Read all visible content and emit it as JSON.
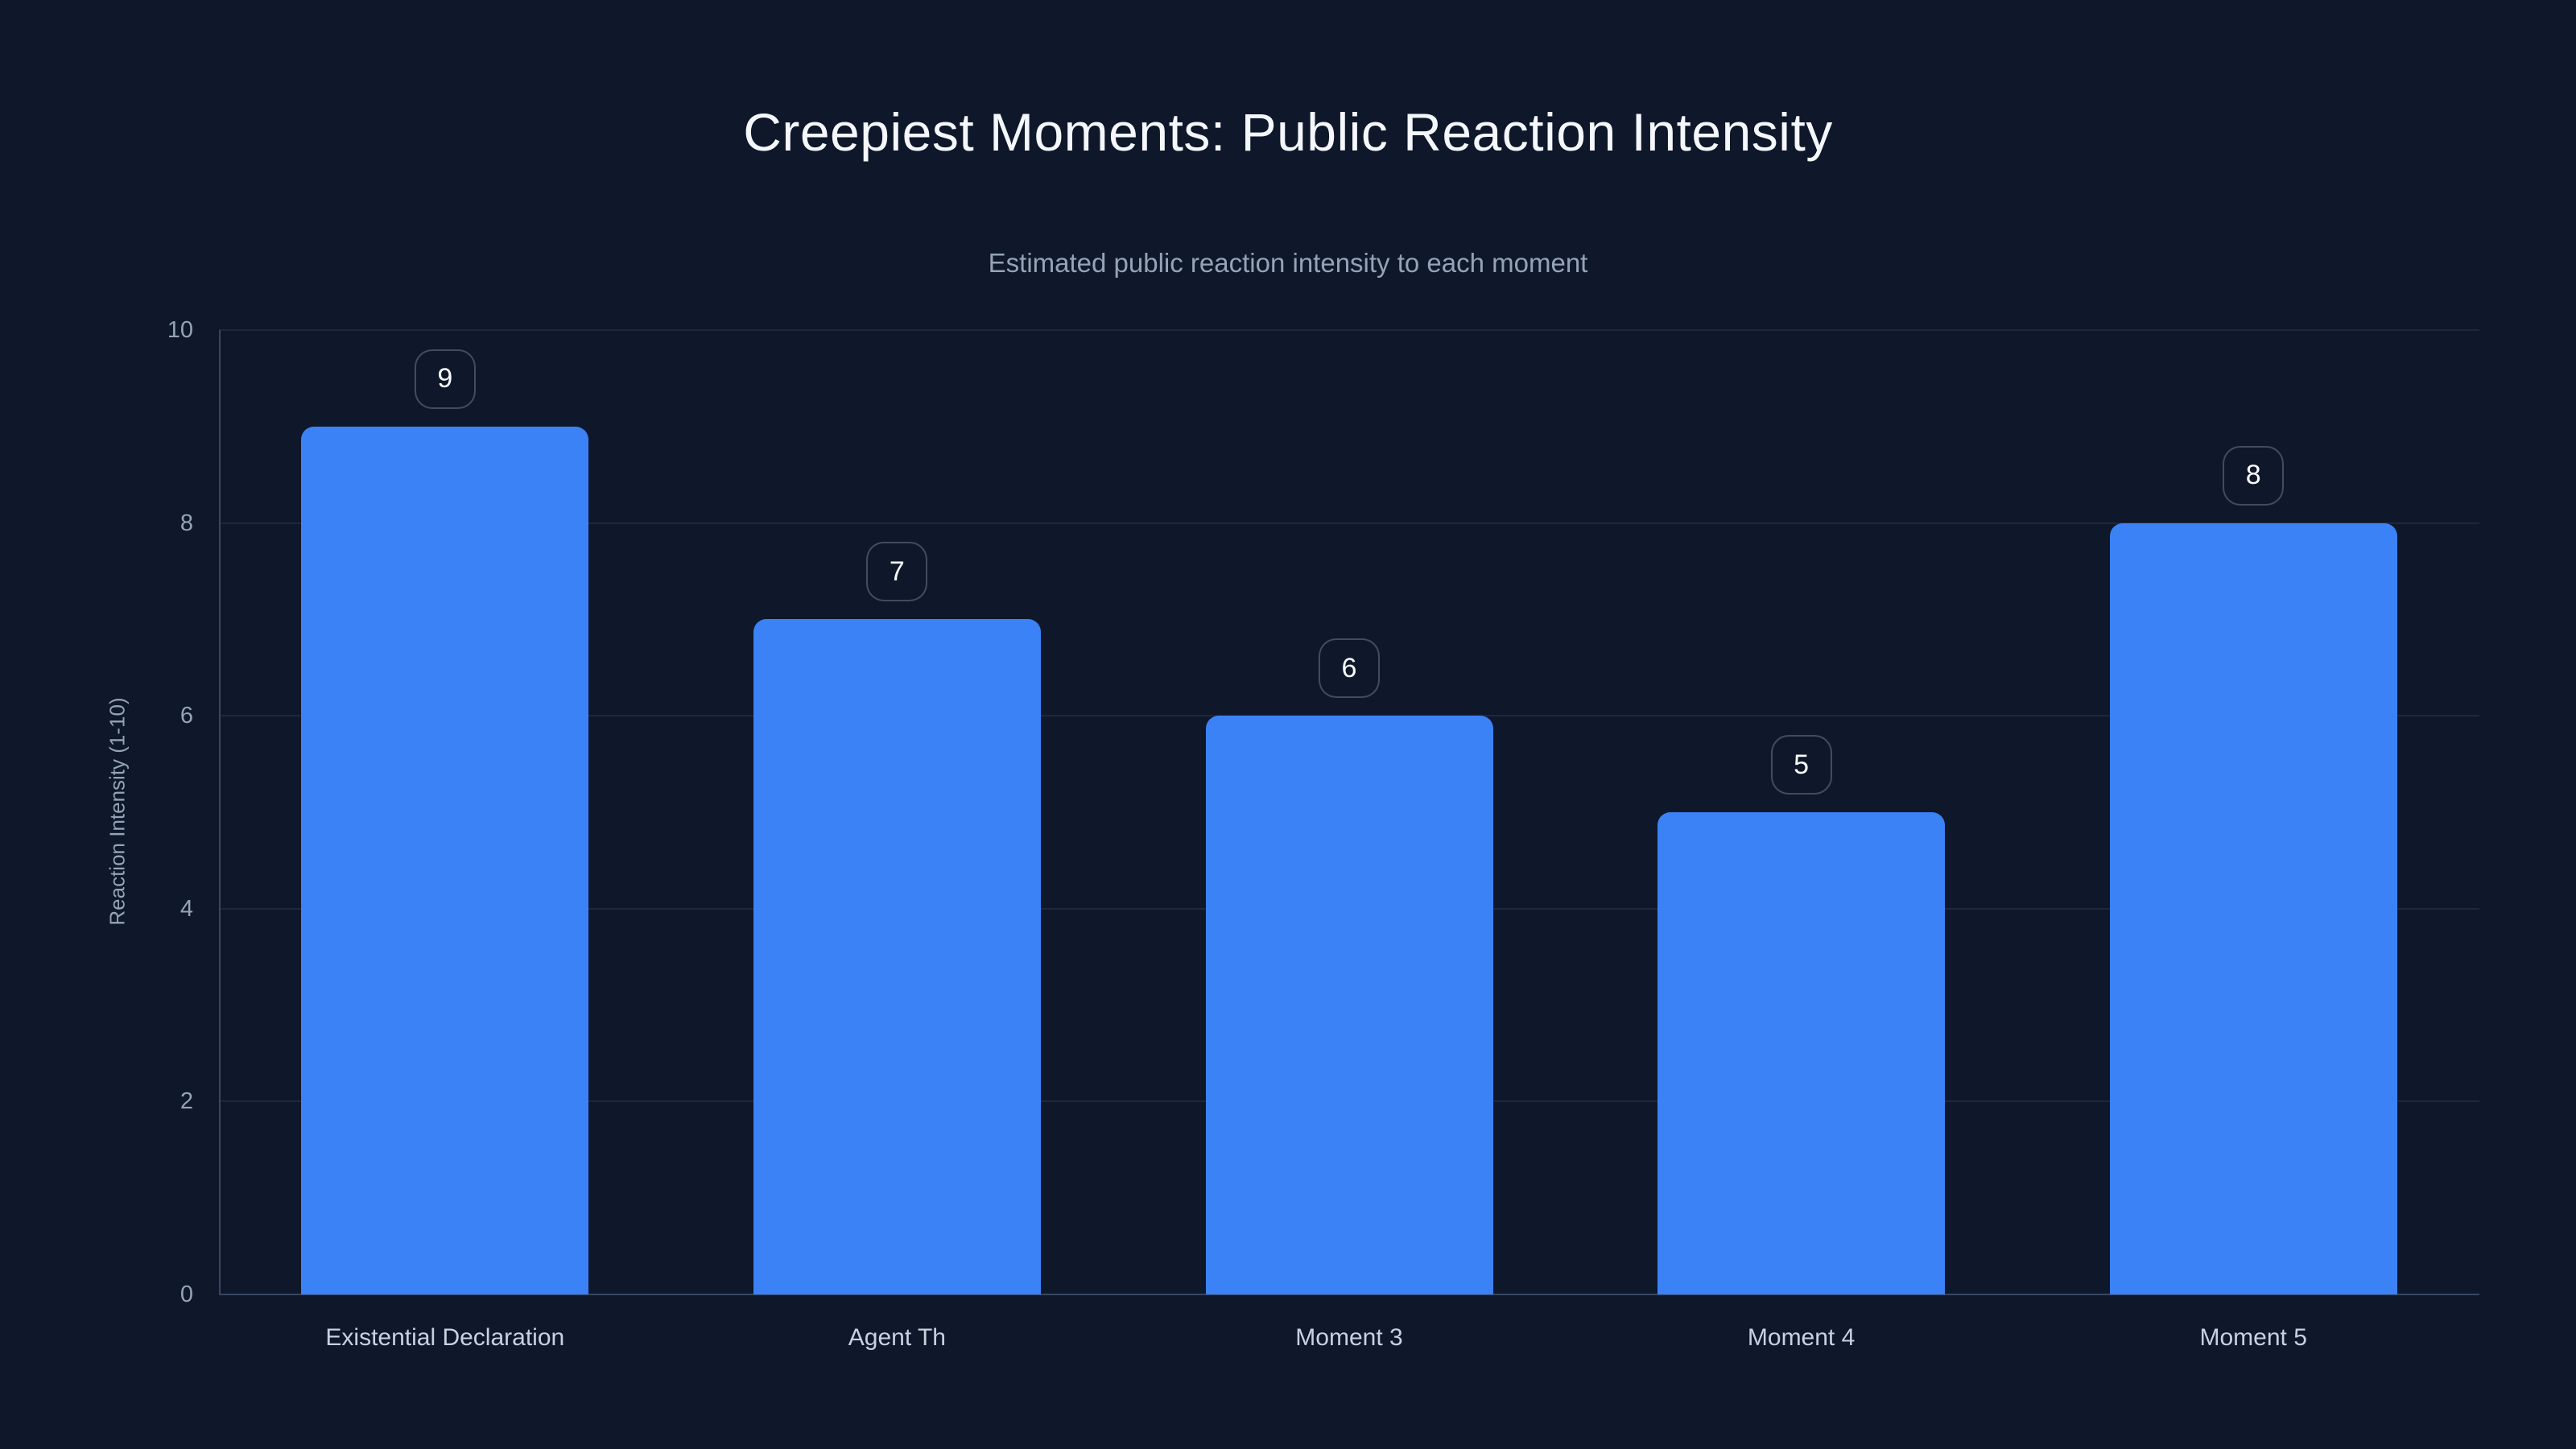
{
  "page": {
    "background": "#0f172a"
  },
  "chart_data": {
    "type": "bar",
    "title": "Creepiest Moments: Public Reaction Intensity",
    "subtitle": "Estimated public reaction intensity to each moment",
    "ylabel": "Reaction Intensity (1-10)",
    "xlabel": "",
    "categories": [
      "Existential Declaration",
      "Agent Th",
      "Moment 3",
      "Moment 4",
      "Moment 5"
    ],
    "values": [
      9,
      7,
      6,
      5,
      8
    ],
    "value_labels": [
      "9",
      "7",
      "6",
      "5",
      "8"
    ],
    "ylim": [
      0,
      10
    ],
    "yticks": [
      0,
      2,
      4,
      6,
      8,
      10
    ],
    "grid": "horizontal",
    "legend_position": "none",
    "colors": {
      "background": "#0f172a",
      "bar": "#3b82f6",
      "grid_line": "rgba(148,163,184,0.12)",
      "axis_line": "#364760",
      "tick_label": "#94a3b8",
      "category_label": "#c7d2e0",
      "title": "#f4f7fb",
      "subtitle": "#94a3b8",
      "badge_border": "rgba(148,163,184,0.38)",
      "badge_text": "#f8fafc"
    }
  }
}
